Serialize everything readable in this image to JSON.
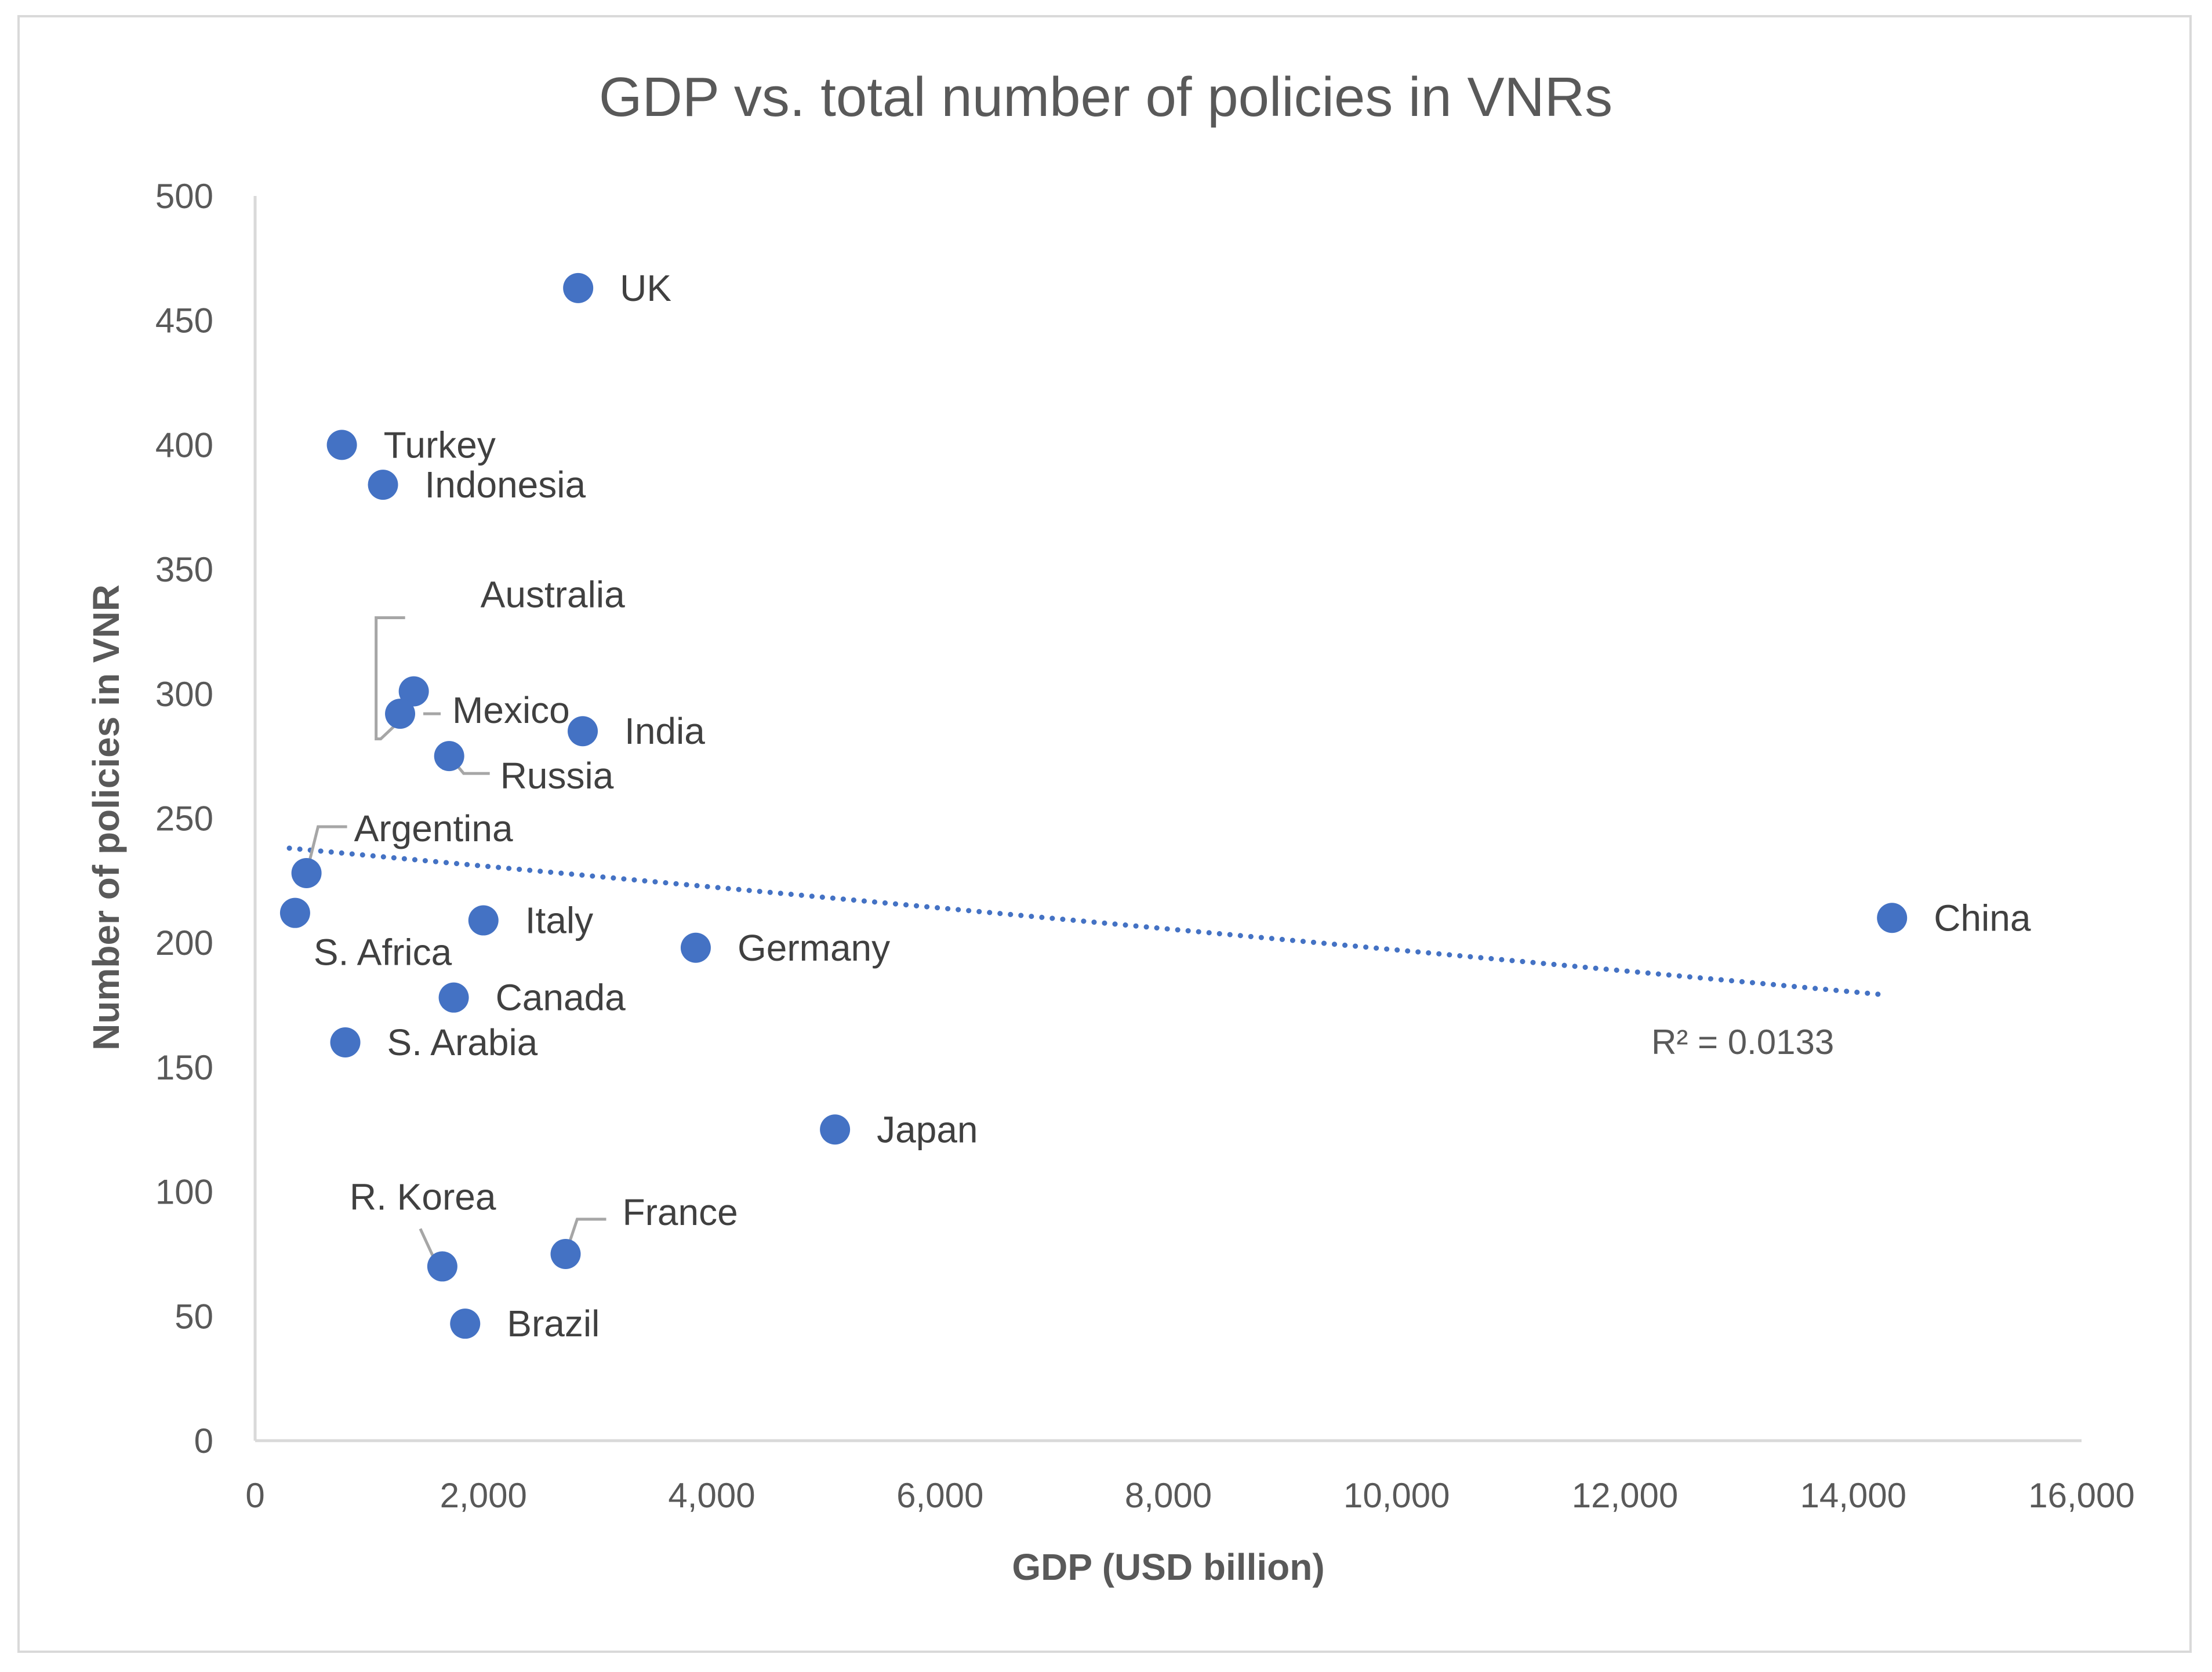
{
  "chart_data": {
    "type": "scatter",
    "title": "GDP vs. total number of policies in VNRs",
    "xlabel": "GDP (USD billion)",
    "ylabel": "Number of policies in VNR",
    "xlim": [
      0,
      16000
    ],
    "ylim": [
      0,
      500
    ],
    "x_ticks": [
      "0",
      "2,000",
      "4,000",
      "6,000",
      "8,000",
      "10,000",
      "12,000",
      "14,000",
      "16,000"
    ],
    "y_ticks": [
      "0",
      "50",
      "100",
      "150",
      "200",
      "250",
      "300",
      "350",
      "400",
      "450",
      "500"
    ],
    "grid": false,
    "marker_color": "#4472c4",
    "points": [
      {
        "label": "UK",
        "x": 2830,
        "y": 463
      },
      {
        "label": "Turkey",
        "x": 760,
        "y": 400
      },
      {
        "label": "Indonesia",
        "x": 1120,
        "y": 384
      },
      {
        "label": "Australia",
        "x": 1390,
        "y": 301
      },
      {
        "label": "Mexico",
        "x": 1270,
        "y": 292
      },
      {
        "label": "India",
        "x": 2870,
        "y": 285
      },
      {
        "label": "Russia",
        "x": 1700,
        "y": 275
      },
      {
        "label": "Argentina",
        "x": 450,
        "y": 228
      },
      {
        "label": "S. Africa",
        "x": 350,
        "y": 212
      },
      {
        "label": "Italy",
        "x": 2000,
        "y": 209
      },
      {
        "label": "China",
        "x": 14340,
        "y": 210
      },
      {
        "label": "Germany",
        "x": 3860,
        "y": 198
      },
      {
        "label": "Canada",
        "x": 1740,
        "y": 178
      },
      {
        "label": "S. Arabia",
        "x": 790,
        "y": 160
      },
      {
        "label": "Japan",
        "x": 5080,
        "y": 125
      },
      {
        "label": "France",
        "x": 2720,
        "y": 75
      },
      {
        "label": "R. Korea",
        "x": 1640,
        "y": 70
      },
      {
        "label": "Brazil",
        "x": 1840,
        "y": 47
      }
    ],
    "trendline": {
      "type": "linear",
      "x_start": 300,
      "y_start": 238,
      "x_end": 14300,
      "y_end": 179,
      "r_squared_label": "R² = 0.0133",
      "color": "#4472c4",
      "style": "dotted"
    }
  }
}
